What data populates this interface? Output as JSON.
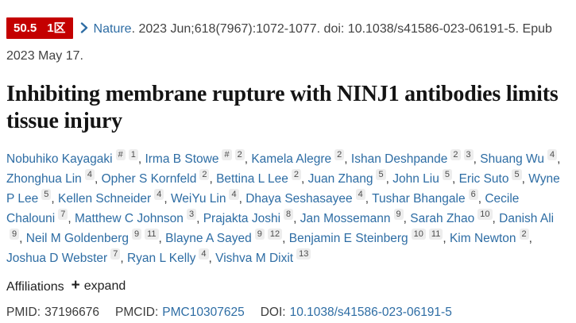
{
  "badge": {
    "impact_factor": "50.5",
    "tier": "1区",
    "bg_color": "#c40000",
    "text_color": "#ffffff"
  },
  "citation": {
    "journal": "Nature",
    "details": ". 2023 Jun;618(7967):1072-1077. doi: 10.1038/s41586-023-06191-5. Epub 2023 May 17."
  },
  "title": "Inhibiting membrane rupture with NINJ1 antibodies limits tissue injury",
  "authors": [
    {
      "name": "Nobuhiko Kayagaki",
      "sups": [
        "#",
        "1"
      ]
    },
    {
      "name": "Irma B Stowe",
      "sups": [
        "#",
        "2"
      ]
    },
    {
      "name": "Kamela Alegre",
      "sups": [
        "2"
      ]
    },
    {
      "name": "Ishan Deshpande",
      "sups": [
        "2",
        "3"
      ]
    },
    {
      "name": "Shuang Wu",
      "sups": [
        "4"
      ]
    },
    {
      "name": "Zhonghua Lin",
      "sups": [
        "4"
      ]
    },
    {
      "name": "Opher S Kornfeld",
      "sups": [
        "2"
      ]
    },
    {
      "name": "Bettina L Lee",
      "sups": [
        "2"
      ]
    },
    {
      "name": "Juan Zhang",
      "sups": [
        "5"
      ]
    },
    {
      "name": "John Liu",
      "sups": [
        "5"
      ]
    },
    {
      "name": "Eric Suto",
      "sups": [
        "5"
      ]
    },
    {
      "name": "Wyne P Lee",
      "sups": [
        "5"
      ]
    },
    {
      "name": "Kellen Schneider",
      "sups": [
        "4"
      ]
    },
    {
      "name": "WeiYu Lin",
      "sups": [
        "4"
      ]
    },
    {
      "name": "Dhaya Seshasayee",
      "sups": [
        "4"
      ]
    },
    {
      "name": "Tushar Bhangale",
      "sups": [
        "6"
      ]
    },
    {
      "name": "Cecile Chalouni",
      "sups": [
        "7"
      ]
    },
    {
      "name": "Matthew C Johnson",
      "sups": [
        "3"
      ]
    },
    {
      "name": "Prajakta Joshi",
      "sups": [
        "8"
      ]
    },
    {
      "name": "Jan Mossemann",
      "sups": [
        "9"
      ]
    },
    {
      "name": "Sarah Zhao",
      "sups": [
        "10"
      ]
    },
    {
      "name": "Danish Ali",
      "sups": [
        "9"
      ]
    },
    {
      "name": "Neil M Goldenberg",
      "sups": [
        "9",
        "11"
      ]
    },
    {
      "name": "Blayne A Sayed",
      "sups": [
        "9",
        "12"
      ]
    },
    {
      "name": "Benjamin E Steinberg",
      "sups": [
        "10",
        "11"
      ]
    },
    {
      "name": "Kim Newton",
      "sups": [
        "2"
      ]
    },
    {
      "name": "Joshua D Webster",
      "sups": [
        "7"
      ]
    },
    {
      "name": "Ryan L Kelly",
      "sups": [
        "4"
      ]
    },
    {
      "name": "Vishva M Dixit",
      "sups": [
        "13"
      ]
    }
  ],
  "affiliations": {
    "label": "Affiliations",
    "expand_icon": "+",
    "expand_label": "expand"
  },
  "ids": {
    "pmid_label": "PMID:",
    "pmid": "37196676",
    "pmcid_label": "PMCID:",
    "pmcid": "PMC10307625",
    "doi_label": "DOI:",
    "doi": "10.1038/s41586-023-06191-5"
  },
  "colors": {
    "link_blue": "#2e6da4",
    "badge_red": "#c40000",
    "text_dark": "#3c3c3c",
    "title_dark": "#141414",
    "sup_badge_bg": "#ededed"
  }
}
